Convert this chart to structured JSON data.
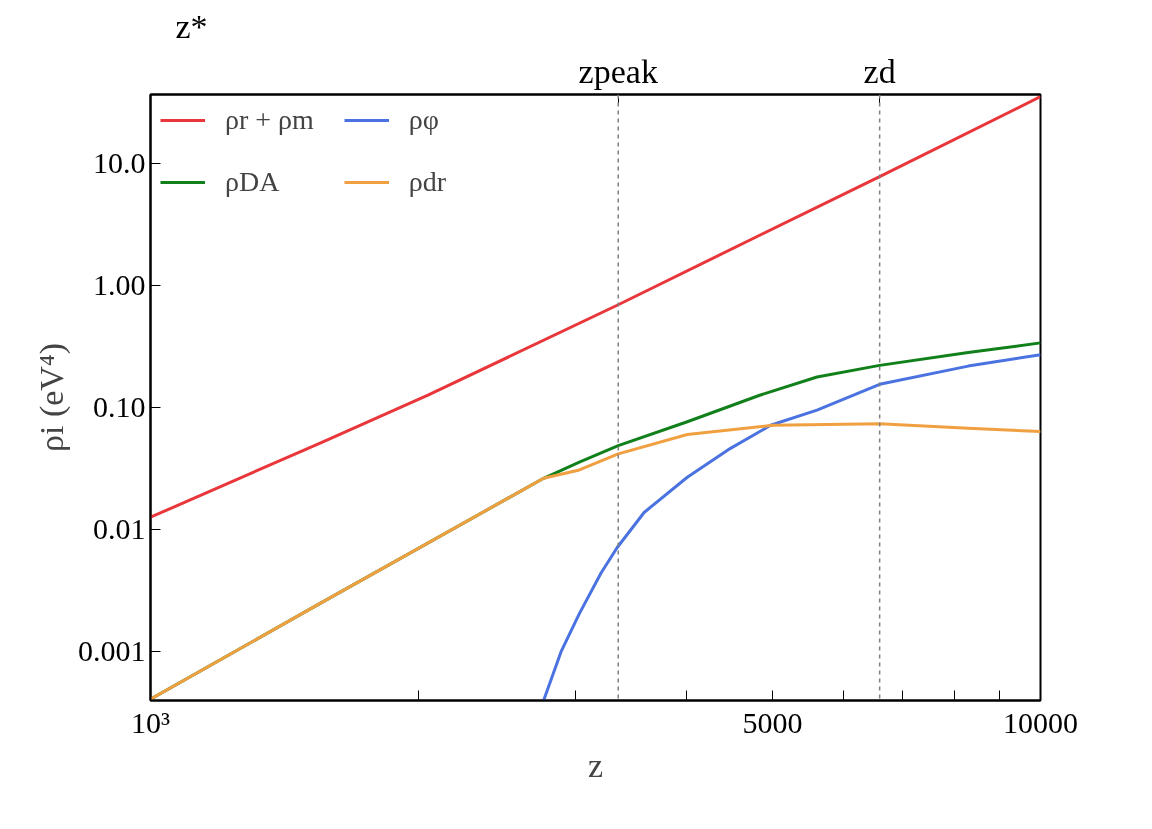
{
  "chart_data": {
    "type": "line",
    "xlabel": "z",
    "ylabel": "ρi (eV⁴)",
    "log": "xy",
    "grid": false,
    "legend": "top left",
    "xlim": [
      1000,
      10000
    ],
    "ylim": [
      0.0004,
      37
    ],
    "xticks": [
      {
        "value": 1000,
        "label": "10³"
      },
      {
        "value": 2000,
        "label": null
      },
      {
        "value": 3000,
        "label": null
      },
      {
        "value": 4000,
        "label": null
      },
      5000,
      {
        "value": 6000,
        "label": null
      },
      {
        "value": 7000,
        "label": null
      },
      {
        "value": 8000,
        "label": null
      },
      {
        "value": 9000,
        "label": null
      },
      10000
    ],
    "yticks": [
      {
        "value": 0.001,
        "label": "0.001"
      },
      {
        "value": 0.01,
        "label": "0.01"
      },
      {
        "value": 0.1,
        "label": "0.10"
      },
      {
        "value": 1,
        "label": "1.00"
      },
      {
        "value": 10,
        "label": "10.0"
      }
    ],
    "annotations": [
      "z*"
    ],
    "ref_lines": [
      {
        "axis": "x",
        "value": 3354,
        "label": "zpeak",
        "color": "#808080",
        "line_style": "dashed"
      },
      {
        "axis": "x",
        "value": 6596,
        "label": "zd",
        "color": "#808080",
        "line_style": "dashed"
      }
    ],
    "series": [
      {
        "name": "ρr + ρm",
        "color": "#e8363b",
        "x": [
          1000,
          1551,
          2050,
          3354,
          4836,
          6596,
          10000
        ],
        "values": [
          0.0127,
          0.0515,
          0.127,
          0.7,
          2.6,
          7.85,
          35.5
        ]
      },
      {
        "name": "ρφ",
        "color": "#4a72e0",
        "x": [
          2765,
          2892,
          3033,
          3208,
          3345,
          3586,
          4010,
          4484,
          4975,
          5609,
          6596,
          8294,
          10000
        ],
        "values": [
          0.0004,
          0.001,
          0.00206,
          0.00443,
          0.00718,
          0.0139,
          0.027,
          0.0466,
          0.072,
          0.096,
          0.156,
          0.22,
          0.273
        ]
      },
      {
        "name": "ρDA",
        "color": "#11801a",
        "x": [
          1000,
          1551,
          2765,
          3033,
          3354,
          4010,
          4836,
          5609,
          6596,
          8294,
          10000
        ],
        "values": [
          0.00041,
          0.0025,
          0.0265,
          0.036,
          0.049,
          0.077,
          0.127,
          0.179,
          0.223,
          0.284,
          0.341
        ]
      },
      {
        "name": "ρdr",
        "color": "#f0a040",
        "x": [
          1000,
          1551,
          2765,
          3033,
          3354,
          4010,
          5000,
          6596,
          8294,
          10000
        ],
        "values": [
          0.00041,
          0.0025,
          0.0265,
          0.031,
          0.042,
          0.0605,
          0.072,
          0.074,
          0.068,
          0.064
        ]
      }
    ]
  }
}
